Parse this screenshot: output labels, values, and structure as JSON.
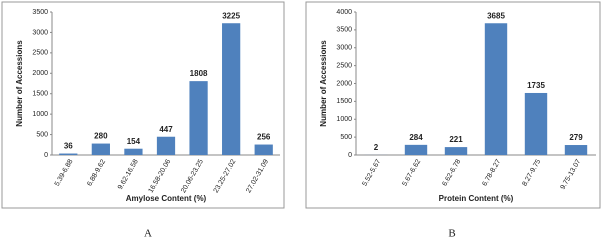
{
  "chart_data": [
    {
      "type": "bar",
      "panel_label": "A",
      "x_label": "Amylose Content (%)",
      "y_label": "Number of Accessions",
      "categories": [
        "5.39-6.88",
        "6.88-9.62",
        "9.62-16.58",
        "16.58-20.06",
        "20.06-23.25",
        "23.25-27.02",
        "27.02-31.09"
      ],
      "values": [
        36,
        280,
        154,
        447,
        1808,
        3225,
        256
      ],
      "color": "#4f81bd",
      "ylim": [
        0,
        3500
      ],
      "yticks": [
        0,
        500,
        1000,
        1500,
        2000,
        2500,
        3000,
        3500
      ],
      "grid": false
    },
    {
      "type": "bar",
      "panel_label": "B",
      "x_label": "Protein Content (%)",
      "y_label": "Number of Accessions",
      "categories": [
        "5.52-5.67",
        "5.67-6.62",
        "6.62-6.78",
        "6.78-8.27",
        "8.27-9.75",
        "9.75-13.07"
      ],
      "values": [
        2,
        284,
        221,
        3685,
        1735,
        279
      ],
      "color": "#4f81bd",
      "ylim": [
        0,
        4000
      ],
      "yticks": [
        0,
        500,
        1000,
        1500,
        2000,
        2500,
        3000,
        3500,
        4000
      ],
      "grid": false
    }
  ]
}
